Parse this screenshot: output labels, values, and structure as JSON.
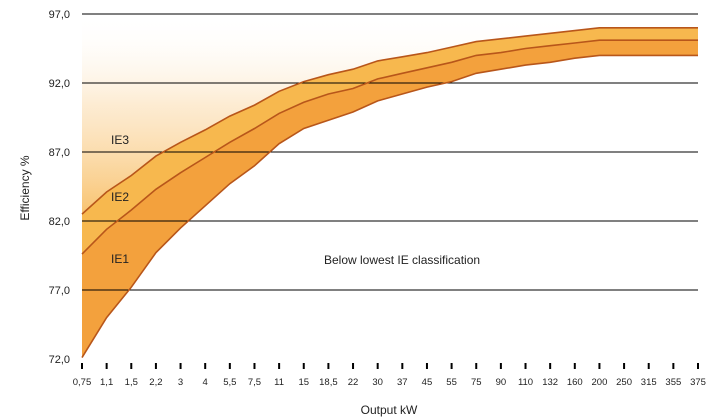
{
  "chart_data": {
    "type": "area",
    "title": "",
    "xlabel": "Output kW",
    "ylabel": "Efficiency %",
    "categories": [
      "0,75",
      "1,1",
      "1,5",
      "2,2",
      "3",
      "4",
      "5,5",
      "7,5",
      "11",
      "15",
      "18,5",
      "22",
      "30",
      "37",
      "45",
      "55",
      "75",
      "90",
      "110",
      "132",
      "160",
      "200",
      "250",
      "315",
      "355",
      "375"
    ],
    "ylim": [
      72,
      97
    ],
    "yticks": [
      "72,0",
      "77,0",
      "82,0",
      "87,0",
      "92,0",
      "97,0"
    ],
    "ytick_values": [
      72,
      77,
      82,
      87,
      92,
      97
    ],
    "grid": "horizontal",
    "series": [
      {
        "name": "IE1",
        "values": [
          72.1,
          75.0,
          77.2,
          79.7,
          81.5,
          83.1,
          84.7,
          86.0,
          87.6,
          88.7,
          89.3,
          89.9,
          90.7,
          91.2,
          91.7,
          92.1,
          92.7,
          93.0,
          93.3,
          93.5,
          93.8,
          94.0,
          94.0,
          94.0,
          94.0,
          94.0
        ]
      },
      {
        "name": "IE2",
        "values": [
          79.6,
          81.4,
          82.8,
          84.3,
          85.5,
          86.6,
          87.7,
          88.7,
          89.8,
          90.6,
          91.2,
          91.6,
          92.3,
          92.7,
          93.1,
          93.5,
          94.0,
          94.2,
          94.5,
          94.7,
          94.9,
          95.1,
          95.1,
          95.1,
          95.1,
          95.1
        ]
      },
      {
        "name": "IE3",
        "values": [
          82.5,
          84.1,
          85.3,
          86.7,
          87.7,
          88.6,
          89.6,
          90.4,
          91.4,
          92.1,
          92.6,
          93.0,
          93.6,
          93.9,
          94.2,
          94.6,
          95.0,
          95.2,
          95.4,
          95.6,
          95.8,
          96.0,
          96.0,
          96.0,
          96.0,
          96.0
        ]
      }
    ],
    "annotations": [
      "Below lowest IE classification"
    ],
    "colors": {
      "ie1_band": "#f29a3a",
      "ie2_band": "#f7b84e",
      "above_top": "#f9c87a",
      "curve": "#b8561a",
      "grid": "#000000"
    }
  }
}
